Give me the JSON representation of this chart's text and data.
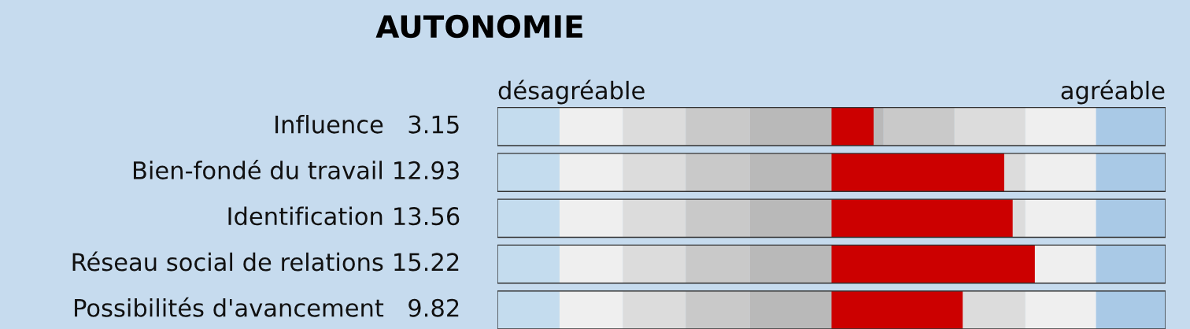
{
  "chart_data": {
    "type": "bar",
    "orientation": "horizontal",
    "title": "AUTONOMIE",
    "categories": [
      "Influence",
      "Bien-fondé du travail",
      "Identification",
      "Réseau social de relations",
      "Possibilités d'avancement"
    ],
    "values": [
      3.15,
      12.93,
      13.56,
      15.22,
      9.82
    ],
    "value_labels": [
      "3.15",
      "12.93",
      "13.56",
      "15.22",
      "9.82"
    ],
    "colors": [
      "#cc0000",
      "#cc0000",
      "#cc0000",
      "#cc0000",
      "#cc0000"
    ],
    "tick_labels": "y",
    "annotations": [
      "désagréable",
      "agréable"
    ]
  }
}
